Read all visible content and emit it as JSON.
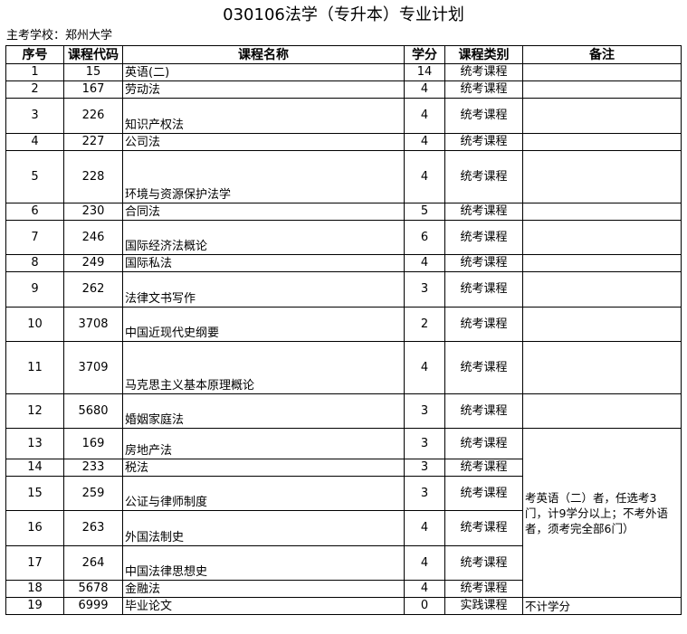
{
  "title": "030106法学（专升本）专业计划",
  "school": "主考学校：郑州大学",
  "headers": [
    "序号",
    "课程代码",
    "课程名称",
    "学分",
    "课程类别",
    "备注"
  ],
  "rows": [
    {
      "no": "1",
      "code": "15",
      "name": "英语(二)",
      "credit": "14",
      "type": "统考课程"
    },
    {
      "no": "2",
      "code": "167",
      "name": "劳动法",
      "credit": "4",
      "type": "统考课程"
    },
    {
      "no": "3",
      "code": "226",
      "name": "知识产权法",
      "credit": "4",
      "type": "统考课程"
    },
    {
      "no": "4",
      "code": "227",
      "name": "公司法",
      "credit": "4",
      "type": "统考课程"
    },
    {
      "no": "5",
      "code": "228",
      "name": "环境与资源保护法学",
      "credit": "4",
      "type": "统考课程"
    },
    {
      "no": "6",
      "code": "230",
      "name": "合同法",
      "credit": "5",
      "type": "统考课程"
    },
    {
      "no": "7",
      "code": "246",
      "name": "国际经济法概论",
      "credit": "6",
      "type": "统考课程"
    },
    {
      "no": "8",
      "code": "249",
      "name": "国际私法",
      "credit": "4",
      "type": "统考课程"
    },
    {
      "no": "9",
      "code": "262",
      "name": "法律文书写作",
      "credit": "3",
      "type": "统考课程"
    },
    {
      "no": "10",
      "code": "3708",
      "name": "中国近现代史纲要",
      "credit": "2",
      "type": "统考课程"
    },
    {
      "no": "11",
      "code": "3709",
      "name": "马克思主义基本原理概论",
      "credit": "4",
      "type": "统考课程"
    },
    {
      "no": "12",
      "code": "5680",
      "name": "婚姻家庭法",
      "credit": "3",
      "type": "统考课程"
    },
    {
      "no": "13",
      "code": "169",
      "name": "房地产法",
      "credit": "3",
      "type": "统考课程"
    },
    {
      "no": "14",
      "code": "233",
      "name": "税法",
      "credit": "3",
      "type": "统考课程"
    },
    {
      "no": "15",
      "code": "259",
      "name": "公证与律师制度",
      "credit": "3",
      "type": "统考课程"
    },
    {
      "no": "16",
      "code": "263",
      "name": "外国法制史",
      "credit": "4",
      "type": "统考课程"
    },
    {
      "no": "17",
      "code": "264",
      "name": "中国法律思想史",
      "credit": "4",
      "type": "统考课程"
    },
    {
      "no": "18",
      "code": "5678",
      "name": "金融法",
      "credit": "4",
      "type": "统考课程"
    },
    {
      "no": "19",
      "code": "6999",
      "name": "毕业论文",
      "credit": "0",
      "type": "实践课程",
      "remark": "不计学分"
    }
  ],
  "elective_remark": "考英语（二）者，任选考3门，计9学分以上；不考外语者，须考完全部6门）"
}
